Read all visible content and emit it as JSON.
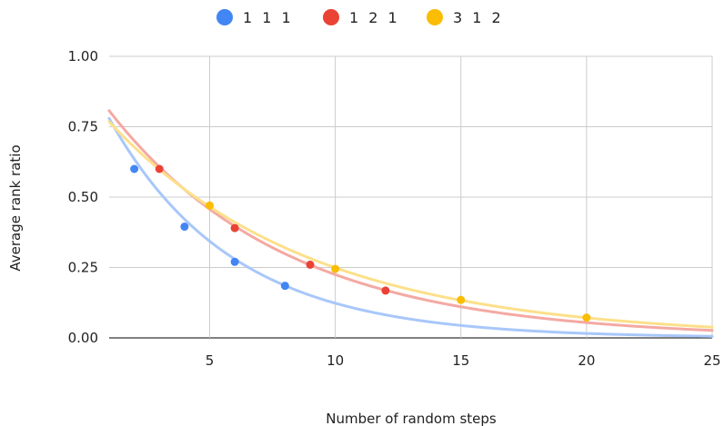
{
  "chart_data": {
    "type": "scatter",
    "xlabel": "Number of random steps",
    "ylabel": "Average rank ratio",
    "xlim": [
      1,
      25
    ],
    "ylim": [
      0,
      1
    ],
    "x_ticks": [
      5,
      10,
      15,
      20,
      25
    ],
    "y_ticks": [
      0,
      0.25,
      0.5,
      0.75,
      1.0
    ],
    "x_tick_labels": [
      "5",
      "10",
      "15",
      "20",
      "25"
    ],
    "y_tick_labels": [
      "0.00",
      "0.25",
      "0.50",
      "0.75",
      "1.00"
    ],
    "grid": true,
    "legend_position": "top-center",
    "trendline": "exponential",
    "series": [
      {
        "name": "1 1 1",
        "color": "#4285F4",
        "trend_color": "#A8C7FA",
        "points": [
          [
            2,
            0.6
          ],
          [
            4,
            0.395
          ],
          [
            6,
            0.27
          ],
          [
            8,
            0.185
          ]
        ],
        "trend": {
          "a": 0.957,
          "b": 0.205
        }
      },
      {
        "name": "1 2 1",
        "color": "#EA4335",
        "trend_color": "#F4A9A3",
        "points": [
          [
            3,
            0.6
          ],
          [
            6,
            0.39
          ],
          [
            9,
            0.26
          ],
          [
            12,
            0.168
          ]
        ],
        "trend": {
          "a": 0.93,
          "b": 0.142
        }
      },
      {
        "name": "3 1 2",
        "color": "#FBBC04",
        "trend_color": "#FCE08A",
        "points": [
          [
            5,
            0.47
          ],
          [
            10,
            0.245
          ],
          [
            15,
            0.135
          ],
          [
            20,
            0.072
          ]
        ],
        "trend": {
          "a": 0.87,
          "b": 0.125
        }
      }
    ]
  }
}
